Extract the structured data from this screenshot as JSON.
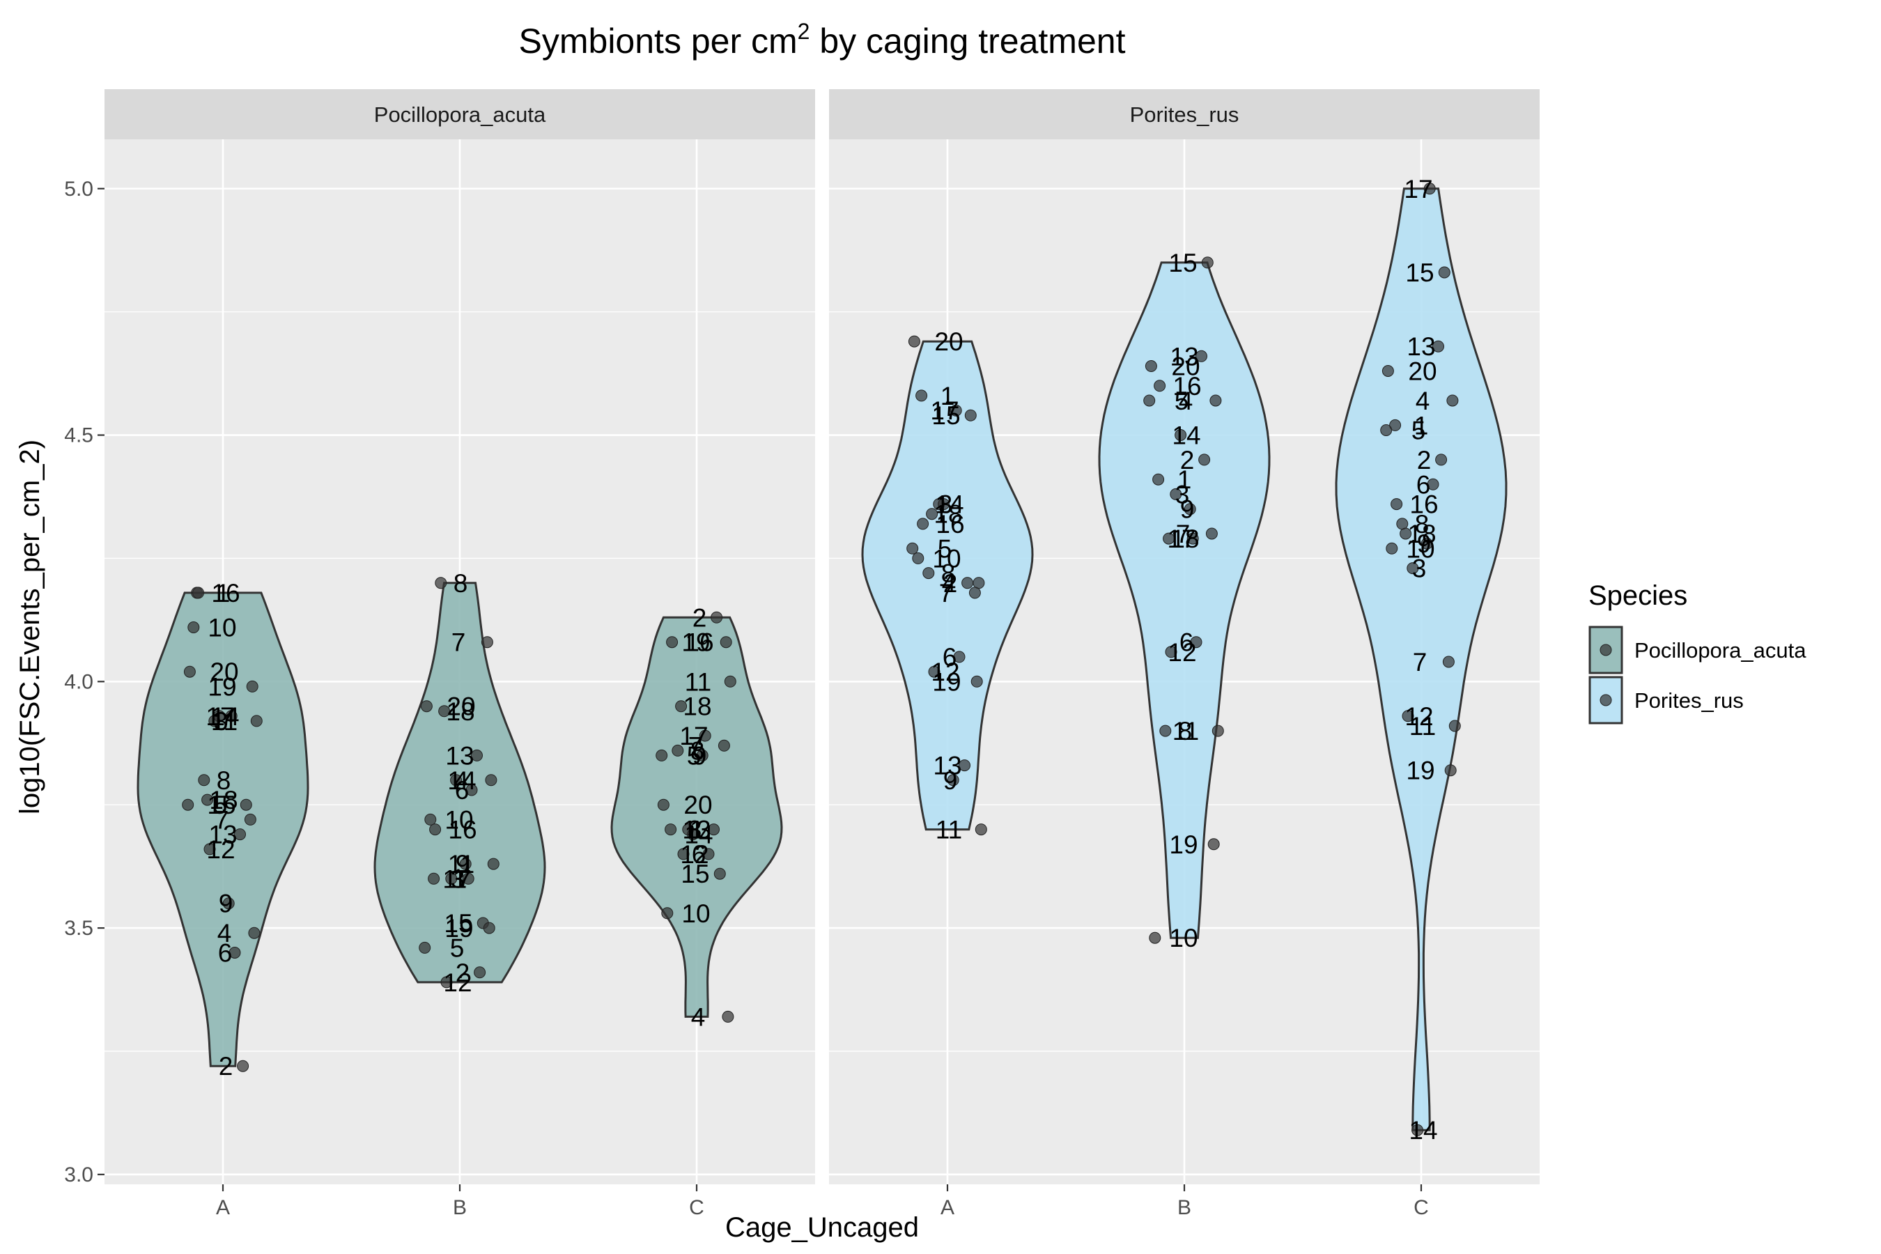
{
  "chart_data": {
    "type": "violin",
    "title": "Symbionts per cm",
    "title_superscript": "2",
    "title_suffix": " by caging treatment",
    "xlabel": "Cage_Uncaged",
    "ylabel": "log10(FSC.Events_per_cm_2)",
    "ylim": [
      2.98,
      5.1
    ],
    "yticks": [
      "3.0",
      "3.5",
      "4.0",
      "4.5",
      "5.0"
    ],
    "ytick_values": [
      3.0,
      3.5,
      4.0,
      4.5,
      5.0
    ],
    "categories": [
      "A",
      "B",
      "C"
    ],
    "grid": true,
    "legend": {
      "title": "Species",
      "placement": "right",
      "entries": [
        {
          "name": "Pocillopora_acuta",
          "color": "#8fb8b5"
        },
        {
          "name": "Porites_rus",
          "color": "#b5e0f4"
        }
      ]
    },
    "facets": [
      {
        "name": "Pocillopora_acuta",
        "color": "#8fb8b5",
        "groups": [
          {
            "category": "A",
            "points": [
              {
                "id": "1",
                "y": 4.18
              },
              {
                "id": "2",
                "y": 3.22
              },
              {
                "id": "3",
                "y": 3.92
              },
              {
                "id": "4",
                "y": 3.49
              },
              {
                "id": "5",
                "y": 3.75
              },
              {
                "id": "6",
                "y": 3.45
              },
              {
                "id": "7",
                "y": 3.72
              },
              {
                "id": "8",
                "y": 3.8
              },
              {
                "id": "9",
                "y": 3.55
              },
              {
                "id": "10",
                "y": 4.11
              },
              {
                "id": "11",
                "y": 3.92
              },
              {
                "id": "12",
                "y": 3.66
              },
              {
                "id": "13",
                "y": 3.69
              },
              {
                "id": "14",
                "y": 3.93
              },
              {
                "id": "15",
                "y": 3.75
              },
              {
                "id": "16",
                "y": 4.18
              },
              {
                "id": "17",
                "y": 3.93
              },
              {
                "id": "18",
                "y": 3.76
              },
              {
                "id": "19",
                "y": 3.99
              },
              {
                "id": "20",
                "y": 4.02
              }
            ]
          },
          {
            "category": "B",
            "points": [
              {
                "id": "1",
                "y": 3.6
              },
              {
                "id": "2",
                "y": 3.41
              },
              {
                "id": "3",
                "y": 3.6
              },
              {
                "id": "4",
                "y": 3.8
              },
              {
                "id": "5",
                "y": 3.46
              },
              {
                "id": "6",
                "y": 3.78
              },
              {
                "id": "7",
                "y": 4.08
              },
              {
                "id": "8",
                "y": 4.2
              },
              {
                "id": "9",
                "y": 3.63
              },
              {
                "id": "10",
                "y": 3.72
              },
              {
                "id": "11",
                "y": 3.63
              },
              {
                "id": "12",
                "y": 3.39
              },
              {
                "id": "13",
                "y": 3.85
              },
              {
                "id": "14",
                "y": 3.8
              },
              {
                "id": "15",
                "y": 3.51
              },
              {
                "id": "16",
                "y": 3.7
              },
              {
                "id": "17",
                "y": 3.6
              },
              {
                "id": "18",
                "y": 3.94
              },
              {
                "id": "19",
                "y": 3.5
              },
              {
                "id": "20",
                "y": 3.95
              }
            ]
          },
          {
            "category": "C",
            "points": [
              {
                "id": "1",
                "y": 3.7
              },
              {
                "id": "2",
                "y": 4.13
              },
              {
                "id": "3",
                "y": 3.7
              },
              {
                "id": "4",
                "y": 3.32
              },
              {
                "id": "5",
                "y": 3.85
              },
              {
                "id": "6",
                "y": 3.65
              },
              {
                "id": "7",
                "y": 3.87
              },
              {
                "id": "8",
                "y": 3.86
              },
              {
                "id": "9",
                "y": 3.85
              },
              {
                "id": "10",
                "y": 3.53
              },
              {
                "id": "11",
                "y": 4.0
              },
              {
                "id": "12",
                "y": 3.65
              },
              {
                "id": "13",
                "y": 3.7
              },
              {
                "id": "14",
                "y": 3.69
              },
              {
                "id": "15",
                "y": 3.61
              },
              {
                "id": "16",
                "y": 4.08
              },
              {
                "id": "17",
                "y": 3.89
              },
              {
                "id": "18",
                "y": 3.95
              },
              {
                "id": "19",
                "y": 4.08
              },
              {
                "id": "20",
                "y": 3.75
              }
            ]
          }
        ]
      },
      {
        "name": "Porites_rus",
        "color": "#b5e0f4",
        "groups": [
          {
            "category": "A",
            "points": [
              {
                "id": "1",
                "y": 4.58
              },
              {
                "id": "2",
                "y": 4.2
              },
              {
                "id": "3",
                "y": 4.36
              },
              {
                "id": "4",
                "y": 4.2
              },
              {
                "id": "5",
                "y": 4.27
              },
              {
                "id": "6",
                "y": 4.05
              },
              {
                "id": "7",
                "y": 4.18
              },
              {
                "id": "8",
                "y": 4.22
              },
              {
                "id": "9",
                "y": 3.8
              },
              {
                "id": "10",
                "y": 4.25
              },
              {
                "id": "11",
                "y": 3.7
              },
              {
                "id": "12",
                "y": 4.02
              },
              {
                "id": "13",
                "y": 3.83
              },
              {
                "id": "14",
                "y": 4.36
              },
              {
                "id": "15",
                "y": 4.54
              },
              {
                "id": "16",
                "y": 4.32
              },
              {
                "id": "17",
                "y": 4.55
              },
              {
                "id": "18",
                "y": 4.34
              },
              {
                "id": "19",
                "y": 4.0
              },
              {
                "id": "20",
                "y": 4.69
              }
            ]
          },
          {
            "category": "B",
            "points": [
              {
                "id": "1",
                "y": 4.41
              },
              {
                "id": "2",
                "y": 4.45
              },
              {
                "id": "3",
                "y": 4.38
              },
              {
                "id": "4",
                "y": 4.57
              },
              {
                "id": "5",
                "y": 4.57
              },
              {
                "id": "6",
                "y": 4.08
              },
              {
                "id": "7",
                "y": 4.3
              },
              {
                "id": "8",
                "y": 3.9
              },
              {
                "id": "9",
                "y": 4.35
              },
              {
                "id": "10",
                "y": 3.48
              },
              {
                "id": "11",
                "y": 3.9
              },
              {
                "id": "12",
                "y": 4.06
              },
              {
                "id": "13",
                "y": 4.66
              },
              {
                "id": "14",
                "y": 4.5
              },
              {
                "id": "15",
                "y": 4.85
              },
              {
                "id": "16",
                "y": 4.6
              },
              {
                "id": "17",
                "y": 4.29
              },
              {
                "id": "18",
                "y": 4.29
              },
              {
                "id": "19",
                "y": 3.67
              },
              {
                "id": "20",
                "y": 4.64
              }
            ]
          },
          {
            "category": "C",
            "points": [
              {
                "id": "1",
                "y": 4.52
              },
              {
                "id": "2",
                "y": 4.45
              },
              {
                "id": "3",
                "y": 4.23
              },
              {
                "id": "4",
                "y": 4.57
              },
              {
                "id": "5",
                "y": 4.51
              },
              {
                "id": "6",
                "y": 4.4
              },
              {
                "id": "7",
                "y": 4.04
              },
              {
                "id": "8",
                "y": 4.32
              },
              {
                "id": "9",
                "y": 4.28
              },
              {
                "id": "10",
                "y": 4.27
              },
              {
                "id": "11",
                "y": 3.91
              },
              {
                "id": "12",
                "y": 3.93
              },
              {
                "id": "13",
                "y": 4.68
              },
              {
                "id": "14",
                "y": 3.09
              },
              {
                "id": "15",
                "y": 4.83
              },
              {
                "id": "16",
                "y": 4.36
              },
              {
                "id": "17",
                "y": 5.0
              },
              {
                "id": "18",
                "y": 4.3
              },
              {
                "id": "19",
                "y": 3.82
              },
              {
                "id": "20",
                "y": 4.63
              }
            ]
          }
        ]
      }
    ]
  }
}
